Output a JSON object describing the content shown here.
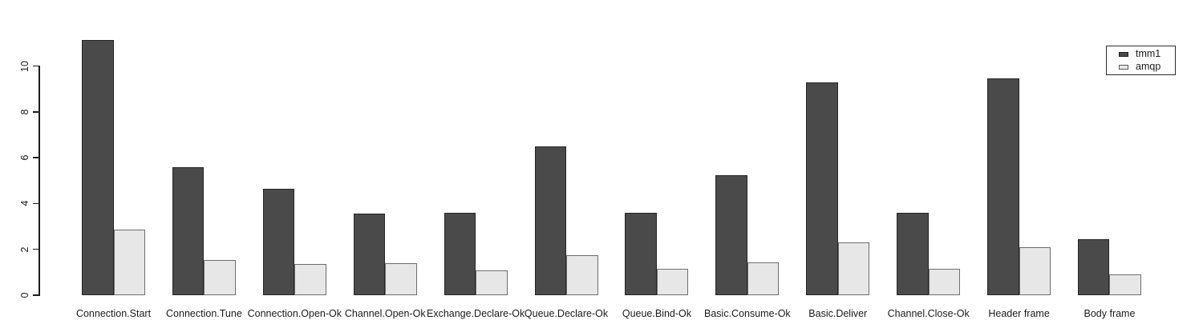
{
  "chart_data": {
    "type": "bar",
    "title": "",
    "xlabel": "",
    "ylabel": "",
    "categories": [
      "Connection.Start",
      "Connection.Tune",
      "Connection.Open-Ok",
      "Channel.Open-Ok",
      "Exchange.Declare-Ok",
      "Queue.Declare-Ok",
      "Queue.Bind-Ok",
      "Basic.Consume-Ok",
      "Basic.Deliver",
      "Channel.Close-Ok",
      "Header frame",
      "Body frame"
    ],
    "series": [
      {
        "name": "tmm1",
        "color": "#4a4a4a",
        "values": [
          11.15,
          5.6,
          4.65,
          3.55,
          3.6,
          6.5,
          3.6,
          5.25,
          9.3,
          3.6,
          9.45,
          2.45
        ]
      },
      {
        "name": "amqp",
        "color": "#e7e7e7",
        "values": [
          2.85,
          1.55,
          1.35,
          1.4,
          1.1,
          1.75,
          1.15,
          1.45,
          2.3,
          1.15,
          2.1,
          0.9
        ]
      }
    ],
    "ylim": [
      0,
      11.5
    ],
    "yticks": [
      0,
      2,
      4,
      6,
      8,
      10
    ],
    "grid": false,
    "legend_position": "top-right",
    "legend_items": [
      {
        "label": "tmm1",
        "color": "#4a4a4a"
      },
      {
        "label": "amqp",
        "color": "#e7e7e7"
      }
    ]
  }
}
